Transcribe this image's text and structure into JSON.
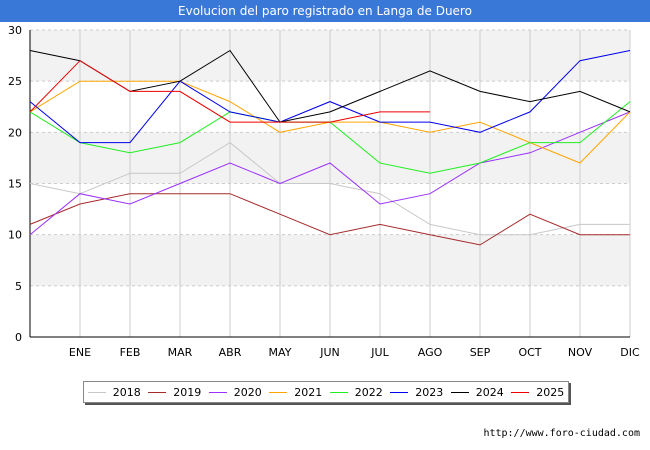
{
  "title": "Evolucion del paro registrado en Langa de Duero",
  "watermark": "http://www.foro-ciudad.com",
  "colors": {
    "title_bg": "#3a78d8",
    "band": "#f2f2f2",
    "grid": "#cccccc"
  },
  "chart_data": {
    "type": "line",
    "title": "Evolucion del paro registrado en Langa de Duero",
    "xlabel": "",
    "ylabel": "",
    "x_points": [
      "",
      "ENE",
      "FEB",
      "MAR",
      "ABR",
      "MAY",
      "JUN",
      "JUL",
      "AGO",
      "SEP",
      "OCT",
      "NOV",
      "DIC"
    ],
    "ylim": [
      0,
      30
    ],
    "yticks": [
      0,
      5,
      10,
      15,
      20,
      25,
      30
    ],
    "grid": true,
    "legend_position": "bottom",
    "series": [
      {
        "name": "2018",
        "color": "#c8c8c8",
        "values": [
          15,
          14,
          16,
          16,
          19,
          15,
          15,
          14,
          11,
          10,
          10,
          11,
          11
        ]
      },
      {
        "name": "2019",
        "color": "#a52a2a",
        "values": [
          11,
          13,
          14,
          14,
          14,
          12,
          10,
          11,
          10,
          9,
          12,
          10,
          10
        ]
      },
      {
        "name": "2020",
        "color": "#9b30ff",
        "values": [
          10,
          14,
          13,
          15,
          17,
          15,
          17,
          13,
          14,
          17,
          18,
          20,
          22
        ]
      },
      {
        "name": "2021",
        "color": "#ffa500",
        "values": [
          22,
          25,
          25,
          25,
          23,
          20,
          21,
          21,
          20,
          21,
          19,
          17,
          22
        ]
      },
      {
        "name": "2022",
        "color": "#22ee22",
        "values": [
          22,
          19,
          18,
          19,
          22,
          21,
          21,
          17,
          16,
          17,
          19,
          19,
          23
        ]
      },
      {
        "name": "2023",
        "color": "#0000ee",
        "values": [
          23,
          19,
          19,
          25,
          22,
          21,
          23,
          21,
          21,
          20,
          22,
          27,
          28
        ]
      },
      {
        "name": "2024",
        "color": "#000000",
        "values": [
          28,
          27,
          24,
          25,
          28,
          21,
          22,
          24,
          26,
          24,
          23,
          24,
          22
        ]
      },
      {
        "name": "2025",
        "color": "#ee0000",
        "values": [
          22,
          27,
          24,
          24,
          21,
          21,
          21,
          22,
          22,
          null,
          null,
          null,
          null
        ]
      }
    ]
  }
}
